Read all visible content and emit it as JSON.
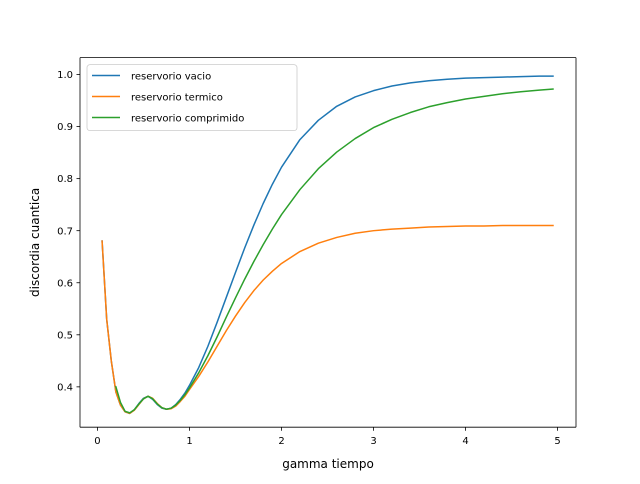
{
  "chart_data": {
    "type": "line",
    "title": "",
    "xlabel": "gamma tiempo",
    "ylabel": "discordia cuantica",
    "xlim": [
      -0.19,
      5.2
    ],
    "ylim": [
      0.3225,
      1.0325
    ],
    "xticks": [
      0,
      1,
      2,
      3,
      4,
      5
    ],
    "yticks": [
      0.4,
      0.5,
      0.6,
      0.7,
      0.8,
      0.9,
      1.0
    ],
    "xtick_labels": [
      "0",
      "1",
      "2",
      "3",
      "4",
      "5"
    ],
    "ytick_labels": [
      "0.4",
      "0.5",
      "0.6",
      "0.7",
      "0.8",
      "0.9",
      "1.0"
    ],
    "grid": false,
    "legend_position": "upper-left",
    "series": [
      {
        "name": "reservorio vacio",
        "color": "#1f77b4",
        "x": [
          0.05,
          0.1,
          0.15,
          0.2,
          0.25,
          0.3,
          0.35,
          0.4,
          0.45,
          0.5,
          0.55,
          0.6,
          0.65,
          0.7,
          0.75,
          0.8,
          0.85,
          0.9,
          0.95,
          1.0,
          1.1,
          1.2,
          1.3,
          1.4,
          1.5,
          1.6,
          1.7,
          1.8,
          1.9,
          2.0,
          2.2,
          2.4,
          2.6,
          2.8,
          3.0,
          3.2,
          3.4,
          3.6,
          3.8,
          4.0,
          4.2,
          4.4,
          4.6,
          4.8,
          4.95
        ],
        "y": [
          0.68,
          0.53,
          0.45,
          0.39,
          0.365,
          0.352,
          0.349,
          0.356,
          0.368,
          0.378,
          0.382,
          0.376,
          0.366,
          0.359,
          0.357,
          0.359,
          0.366,
          0.376,
          0.388,
          0.403,
          0.437,
          0.478,
          0.524,
          0.572,
          0.62,
          0.667,
          0.711,
          0.752,
          0.789,
          0.822,
          0.875,
          0.912,
          0.939,
          0.957,
          0.969,
          0.978,
          0.984,
          0.988,
          0.991,
          0.993,
          0.994,
          0.995,
          0.996,
          0.997,
          0.997
        ]
      },
      {
        "name": "reservorio termico",
        "color": "#ff7f0e",
        "x": [
          0.05,
          0.1,
          0.15,
          0.2,
          0.25,
          0.3,
          0.35,
          0.4,
          0.45,
          0.5,
          0.55,
          0.6,
          0.65,
          0.7,
          0.75,
          0.8,
          0.85,
          0.9,
          0.95,
          1.0,
          1.1,
          1.2,
          1.3,
          1.4,
          1.5,
          1.6,
          1.7,
          1.8,
          1.9,
          2.0,
          2.2,
          2.4,
          2.6,
          2.8,
          3.0,
          3.2,
          3.4,
          3.6,
          3.8,
          4.0,
          4.2,
          4.4,
          4.6,
          4.8,
          4.95
        ],
        "y": [
          0.68,
          0.53,
          0.45,
          0.39,
          0.365,
          0.352,
          0.349,
          0.355,
          0.366,
          0.377,
          0.382,
          0.378,
          0.368,
          0.36,
          0.357,
          0.358,
          0.363,
          0.372,
          0.382,
          0.395,
          0.42,
          0.448,
          0.478,
          0.508,
          0.536,
          0.562,
          0.585,
          0.605,
          0.622,
          0.637,
          0.66,
          0.676,
          0.687,
          0.695,
          0.7,
          0.703,
          0.705,
          0.707,
          0.708,
          0.709,
          0.709,
          0.71,
          0.71,
          0.71,
          0.71
        ]
      },
      {
        "name": "reservorio comprimido",
        "color": "#2ca02c",
        "x": [
          0.2,
          0.25,
          0.3,
          0.35,
          0.4,
          0.45,
          0.5,
          0.55,
          0.6,
          0.65,
          0.7,
          0.75,
          0.8,
          0.85,
          0.9,
          0.95,
          1.0,
          1.1,
          1.2,
          1.3,
          1.4,
          1.5,
          1.6,
          1.7,
          1.8,
          1.9,
          2.0,
          2.2,
          2.4,
          2.6,
          2.8,
          3.0,
          3.2,
          3.4,
          3.6,
          3.8,
          4.0,
          4.2,
          4.4,
          4.6,
          4.8,
          4.95
        ],
        "y": [
          0.4,
          0.37,
          0.353,
          0.35,
          0.356,
          0.367,
          0.377,
          0.382,
          0.377,
          0.367,
          0.36,
          0.357,
          0.359,
          0.365,
          0.374,
          0.385,
          0.398,
          0.427,
          0.46,
          0.496,
          0.534,
          0.571,
          0.607,
          0.641,
          0.673,
          0.703,
          0.731,
          0.779,
          0.819,
          0.851,
          0.877,
          0.898,
          0.914,
          0.927,
          0.938,
          0.946,
          0.953,
          0.958,
          0.963,
          0.967,
          0.97,
          0.972
        ]
      }
    ]
  }
}
